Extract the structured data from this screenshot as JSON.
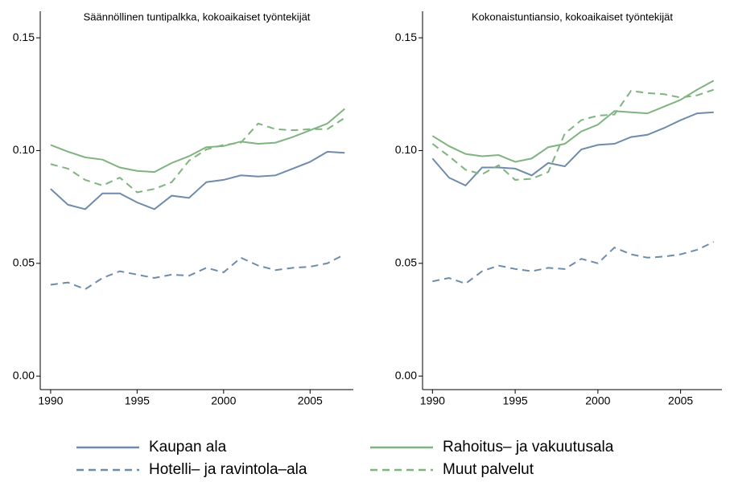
{
  "chart_data": [
    {
      "type": "line",
      "title": "Säännöllinen tuntipalkka, kokoaikaiset työntekijät",
      "x": [
        1990,
        1991,
        1992,
        1993,
        1994,
        1995,
        1996,
        1997,
        1998,
        1999,
        2000,
        2001,
        2002,
        2003,
        2004,
        2005,
        2006,
        2007
      ],
      "xlim": [
        1989.4,
        2007.5
      ],
      "xticks": [
        1990,
        1995,
        2000,
        2005
      ],
      "ylim": [
        -0.006,
        0.16
      ],
      "yticks": [
        {
          "value": 0,
          "label": "0.00"
        },
        {
          "value": 0.05,
          "label": "0.05"
        },
        {
          "value": 0.1,
          "label": "0.10"
        },
        {
          "value": 0.15,
          "label": "0.15"
        }
      ],
      "series": [
        {
          "name": "Kaupan ala",
          "color": "#6e8bab",
          "dashed": false,
          "values": [
            0.083,
            0.076,
            0.074,
            0.081,
            0.081,
            0.077,
            0.074,
            0.08,
            0.079,
            0.086,
            0.087,
            0.089,
            0.0885,
            0.089,
            0.092,
            0.095,
            0.0995,
            0.099
          ]
        },
        {
          "name": "Rahoitus– ja vakuutusala",
          "color": "#7fb37f",
          "dashed": false,
          "values": [
            0.1025,
            0.0995,
            0.097,
            0.096,
            0.0925,
            0.091,
            0.0905,
            0.0945,
            0.0975,
            0.1015,
            0.102,
            0.104,
            0.103,
            0.1035,
            0.106,
            0.109,
            0.112,
            0.1185
          ]
        },
        {
          "name": "Hotelli– ja ravintola–ala",
          "color": "#6e8bab",
          "dashed": true,
          "values": [
            0.0405,
            0.0415,
            0.0385,
            0.0435,
            0.0465,
            0.045,
            0.0435,
            0.045,
            0.0445,
            0.048,
            0.046,
            0.0525,
            0.049,
            0.047,
            0.048,
            0.0485,
            0.05,
            0.054
          ]
        },
        {
          "name": "Muut palvelut",
          "color": "#7fb37f",
          "dashed": true,
          "values": [
            0.094,
            0.092,
            0.087,
            0.0845,
            0.088,
            0.0815,
            0.083,
            0.086,
            0.0955,
            0.1005,
            0.1025,
            0.1035,
            0.112,
            0.1095,
            0.109,
            0.1095,
            0.1095,
            0.1145
          ]
        }
      ]
    },
    {
      "type": "line",
      "title": "Kokonaistuntiansio, kokoaikaiset työntekijät",
      "x": [
        1990,
        1991,
        1992,
        1993,
        1994,
        1995,
        1996,
        1997,
        1998,
        1999,
        2000,
        2001,
        2002,
        2003,
        2004,
        2005,
        2006,
        2007
      ],
      "xlim": [
        1989.4,
        2007.5
      ],
      "xticks": [
        1990,
        1995,
        2000,
        2005
      ],
      "ylim": [
        -0.006,
        0.16
      ],
      "yticks": [
        {
          "value": 0,
          "label": "0.00"
        },
        {
          "value": 0.05,
          "label": "0.05"
        },
        {
          "value": 0.1,
          "label": "0.10"
        },
        {
          "value": 0.15,
          "label": "0.15"
        }
      ],
      "series": [
        {
          "name": "Kaupan ala",
          "color": "#6e8bab",
          "dashed": false,
          "values": [
            0.0965,
            0.088,
            0.0845,
            0.0925,
            0.0925,
            0.092,
            0.089,
            0.0945,
            0.093,
            0.1005,
            0.1025,
            0.103,
            0.106,
            0.107,
            0.11,
            0.1135,
            0.1165,
            0.117
          ]
        },
        {
          "name": "Rahoitus– ja vakuutusala",
          "color": "#7fb37f",
          "dashed": false,
          "values": [
            0.1065,
            0.102,
            0.0985,
            0.0975,
            0.098,
            0.095,
            0.0965,
            0.1015,
            0.103,
            0.1085,
            0.1115,
            0.1175,
            0.117,
            0.1165,
            0.1195,
            0.1225,
            0.127,
            0.131
          ]
        },
        {
          "name": "Hotelli– ja ravintola–ala",
          "color": "#6e8bab",
          "dashed": true,
          "values": [
            0.042,
            0.0435,
            0.041,
            0.0465,
            0.049,
            0.0475,
            0.0465,
            0.048,
            0.0475,
            0.052,
            0.05,
            0.057,
            0.054,
            0.0525,
            0.053,
            0.054,
            0.056,
            0.0595
          ]
        },
        {
          "name": "Muut palvelut",
          "color": "#7fb37f",
          "dashed": true,
          "values": [
            0.103,
            0.0975,
            0.0915,
            0.0895,
            0.0935,
            0.087,
            0.0875,
            0.0905,
            0.1075,
            0.1135,
            0.1155,
            0.116,
            0.1265,
            0.1255,
            0.125,
            0.1235,
            0.1245,
            0.127
          ]
        }
      ]
    }
  ]
}
